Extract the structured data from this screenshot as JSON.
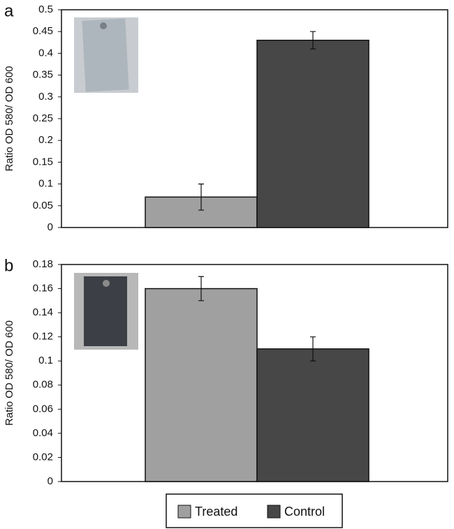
{
  "chart_data": [
    {
      "type": "bar",
      "panel": "a",
      "ylabel": "Ratio OD 580/ OD 600",
      "categories": [
        null
      ],
      "series": [
        {
          "name": "Treated",
          "color": "#a0a0a0",
          "values": [
            0.07
          ],
          "errors": [
            0.03
          ]
        },
        {
          "name": "Control",
          "color": "#474747",
          "values": [
            0.43
          ],
          "errors": [
            0.02
          ]
        }
      ],
      "ylim": [
        0,
        0.5
      ],
      "yticks": [
        0,
        0.05,
        0.1,
        0.15,
        0.2,
        0.25,
        0.3,
        0.35,
        0.4,
        0.45,
        0.5
      ]
    },
    {
      "type": "bar",
      "panel": "b",
      "ylabel": "Ratio OD 580/ OD 600",
      "categories": [
        null
      ],
      "series": [
        {
          "name": "Treated",
          "color": "#a0a0a0",
          "values": [
            0.16
          ],
          "errors": [
            0.01
          ]
        },
        {
          "name": "Control",
          "color": "#474747",
          "values": [
            0.11
          ],
          "errors": [
            0.01
          ]
        }
      ],
      "ylim": [
        0,
        0.18
      ],
      "yticks": [
        0,
        0.02,
        0.04,
        0.06,
        0.08,
        0.1,
        0.12,
        0.14,
        0.16,
        0.18
      ]
    }
  ]
}
